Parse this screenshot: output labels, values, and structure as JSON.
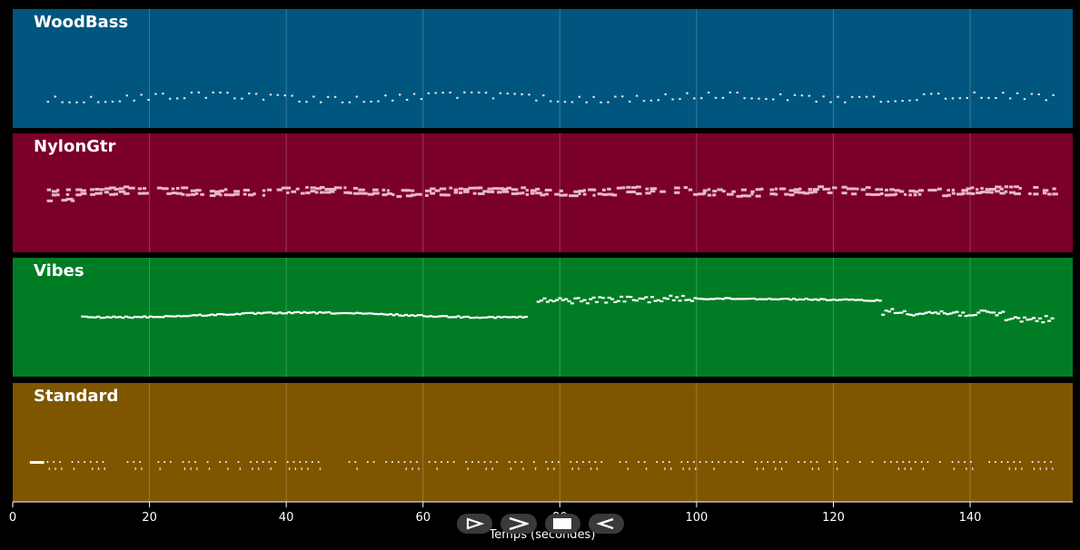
{
  "chart_data": {
    "type": "scatter",
    "xlabel": "Temps (secondes)",
    "xlim": [
      0,
      155
    ],
    "xticks": [
      0,
      20,
      40,
      60,
      80,
      100,
      120,
      140
    ],
    "grid": true,
    "tracks": [
      {
        "name": "WoodBass",
        "color": "#00567f",
        "start": 5,
        "end": 152,
        "style": "dots"
      },
      {
        "name": "NylonGtr",
        "color": "#7a002b",
        "start": 5,
        "end": 152,
        "style": "blocks"
      },
      {
        "name": "Vibes",
        "color": "#007d24",
        "start": 10,
        "end": 152,
        "style": "line"
      },
      {
        "name": "Standard",
        "color": "#7f5600",
        "start": 2.5,
        "end": 152,
        "style": "hits"
      }
    ]
  },
  "player": {
    "buttons": [
      {
        "name": "play-icon"
      },
      {
        "name": "forward-icon"
      },
      {
        "name": "stop-icon"
      },
      {
        "name": "rewind-icon"
      }
    ]
  }
}
